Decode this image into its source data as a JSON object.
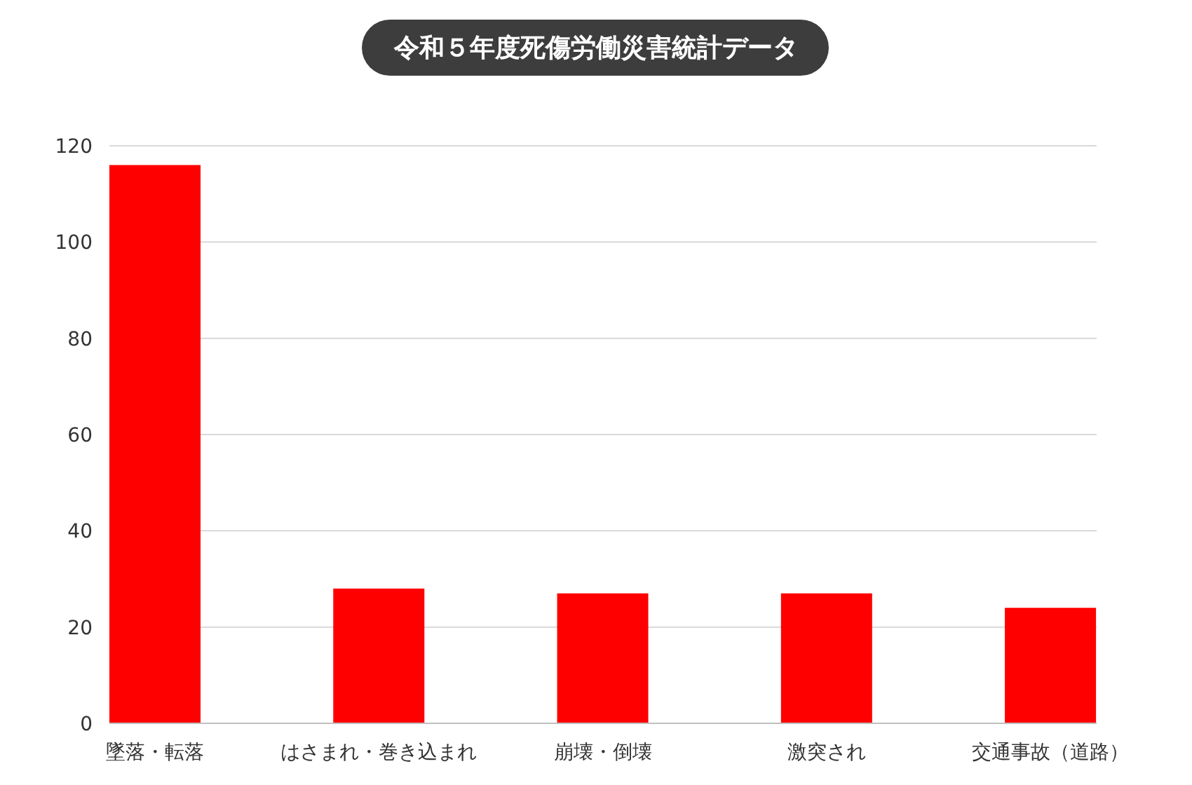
{
  "chart_data": {
    "type": "bar",
    "title": "令和５年度死傷労働災害統計データ",
    "categories": [
      "墜落・転落",
      "はさまれ・巻き込まれ",
      "崩壊・倒壊",
      "激突され",
      "交通事故（道路）"
    ],
    "values": [
      116,
      28,
      27,
      27,
      24
    ],
    "color": "#ff0000",
    "ylim": [
      0,
      120
    ],
    "yticks": [
      0,
      20,
      40,
      60,
      80,
      100,
      120
    ],
    "grid": "y"
  }
}
